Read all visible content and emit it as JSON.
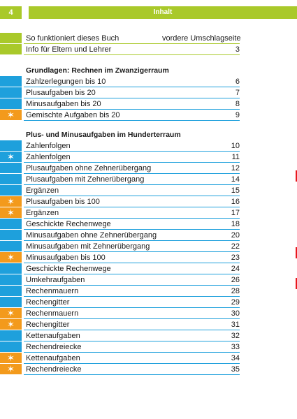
{
  "header": {
    "page_number": "4",
    "title": "Inhalt"
  },
  "front_items": [
    {
      "label": "So funktioniert dieses Buch",
      "right_label": "vordere Umschlagseite",
      "page": "",
      "marker": "green",
      "star": false
    },
    {
      "label": "Info für Eltern und Lehrer",
      "right_label": "",
      "page": "3",
      "marker": "green",
      "star": false
    }
  ],
  "sections": [
    {
      "heading": "Grundlagen: Rechnen im Zwanzigerraum",
      "items": [
        {
          "label": "Zahlzerlegungen bis 10",
          "page": "6",
          "marker": "blue",
          "star": false
        },
        {
          "label": "Plusaufgaben bis 20",
          "page": "7",
          "marker": "blue",
          "star": false
        },
        {
          "label": "Minusaufgaben bis 20",
          "page": "8",
          "marker": "blue",
          "star": false
        },
        {
          "label": "Gemischte Aufgaben bis 20",
          "page": "9",
          "marker": "orange",
          "star": true
        }
      ]
    },
    {
      "heading": "Plus- und Minusaufgaben im Hunderterraum",
      "items": [
        {
          "label": "Zahlenfolgen",
          "page": "10",
          "marker": "blue",
          "star": false
        },
        {
          "label": "Zahlenfolgen",
          "page": "11",
          "marker": "blue",
          "star": true
        },
        {
          "label": "Plusaufgaben ohne Zehnerübergang",
          "page": "12",
          "marker": "blue",
          "star": false
        },
        {
          "label": "Plusaufgaben mit Zehnerübergang",
          "page": "14",
          "marker": "blue",
          "star": false
        },
        {
          "label": "Ergänzen",
          "page": "15",
          "marker": "blue",
          "star": false
        },
        {
          "label": "Plusaufgaben bis 100",
          "page": "16",
          "marker": "orange",
          "star": true
        },
        {
          "label": "Ergänzen",
          "page": "17",
          "marker": "orange",
          "star": true
        },
        {
          "label": "Geschickte Rechenwege",
          "page": "18",
          "marker": "blue",
          "star": false
        },
        {
          "label": "Minusaufgaben ohne Zehnerübergang",
          "page": "20",
          "marker": "blue",
          "star": false
        },
        {
          "label": "Minusaufgaben mit Zehnerübergang",
          "page": "22",
          "marker": "blue",
          "star": false
        },
        {
          "label": "Minusaufgaben bis 100",
          "page": "23",
          "marker": "orange",
          "star": true
        },
        {
          "label": "Geschickte Rechenwege",
          "page": "24",
          "marker": "blue",
          "star": false
        },
        {
          "label": "Umkehraufgaben",
          "page": "26",
          "marker": "blue",
          "star": false
        },
        {
          "label": "Rechenmauern",
          "page": "28",
          "marker": "blue",
          "star": false
        },
        {
          "label": "Rechengitter",
          "page": "29",
          "marker": "blue",
          "star": false
        },
        {
          "label": "Rechenmauern",
          "page": "30",
          "marker": "orange",
          "star": true
        },
        {
          "label": "Rechengitter",
          "page": "31",
          "marker": "orange",
          "star": true
        },
        {
          "label": "Kettenaufgaben",
          "page": "32",
          "marker": "blue",
          "star": false
        },
        {
          "label": "Rechendreiecke",
          "page": "33",
          "marker": "blue",
          "star": false
        },
        {
          "label": "Kettenaufgaben",
          "page": "34",
          "marker": "orange",
          "star": true
        },
        {
          "label": "Rechendreiecke",
          "page": "35",
          "marker": "orange",
          "star": true
        }
      ]
    }
  ],
  "colors": {
    "green": "#a9c92a",
    "blue": "#1ea0dc",
    "orange": "#f39a1c",
    "edge_red": "#e8171d"
  },
  "icons": {
    "star": "✶"
  }
}
